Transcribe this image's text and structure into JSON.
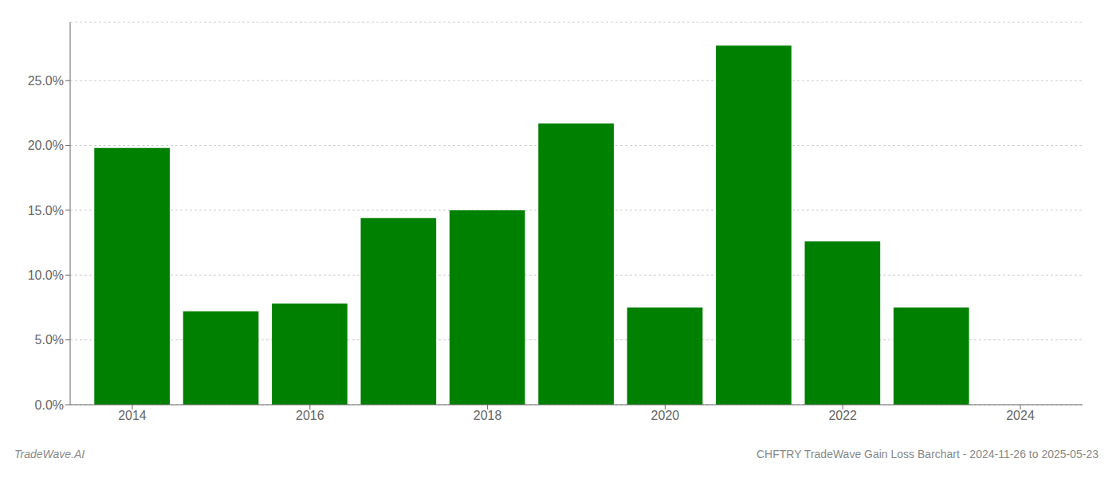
{
  "chart_data": {
    "type": "bar",
    "x": [
      2014,
      2015,
      2016,
      2017,
      2018,
      2019,
      2020,
      2021,
      2022,
      2023
    ],
    "values": [
      0.198,
      0.072,
      0.078,
      0.144,
      0.15,
      0.217,
      0.075,
      0.277,
      0.126,
      0.075
    ],
    "color": "#008000",
    "xlim": [
      2013.3,
      2024.7
    ],
    "ylim": [
      0.0,
      0.295
    ],
    "xticks": [
      2014,
      2016,
      2018,
      2020,
      2022,
      2024
    ],
    "yticks": [
      {
        "value": 0.0,
        "label": "0.0%"
      },
      {
        "value": 0.05,
        "label": "5.0%"
      },
      {
        "value": 0.1,
        "label": "10.0%"
      },
      {
        "value": 0.15,
        "label": "15.0%"
      },
      {
        "value": 0.2,
        "label": "20.0%"
      },
      {
        "value": 0.25,
        "label": "25.0%"
      }
    ],
    "grid": "y",
    "annotations": [
      "TradeWave.AI",
      "CHFTRY TradeWave Gain Loss Barchart - 2024-11-26 to 2025-05-23"
    ]
  }
}
